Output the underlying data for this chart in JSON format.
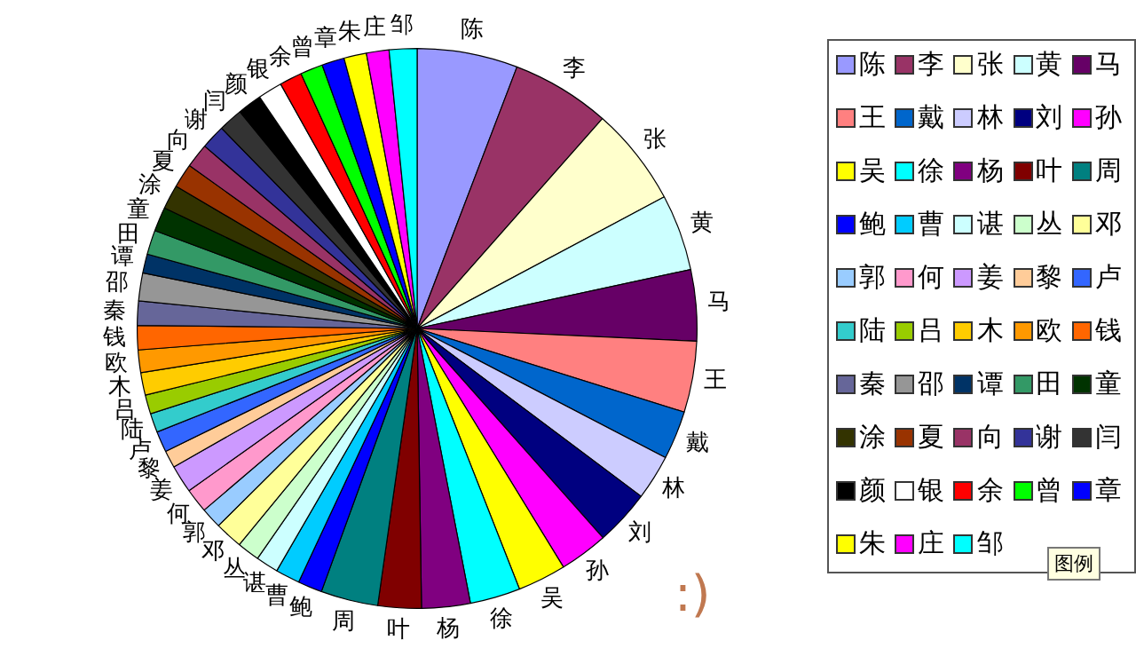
{
  "chart_data": {
    "type": "pie",
    "categories": [
      "陈",
      "李",
      "张",
      "黄",
      "马",
      "王",
      "戴",
      "林",
      "刘",
      "孙",
      "吴",
      "徐",
      "杨",
      "叶",
      "周",
      "鲍",
      "曹",
      "谌",
      "丛",
      "邓",
      "郭",
      "何",
      "姜",
      "黎",
      "卢",
      "陆",
      "吕",
      "木",
      "欧",
      "钱",
      "秦",
      "邵",
      "谭",
      "田",
      "童",
      "涂",
      "夏",
      "向",
      "谢",
      "闫",
      "颜",
      "银",
      "余",
      "曾",
      "章",
      "朱",
      "庄",
      "邹"
    ],
    "values": [
      5.8,
      5.7,
      5.7,
      4.4,
      4.1,
      4.1,
      2.8,
      2.6,
      3.2,
      2.8,
      2.8,
      2.9,
      2.8,
      2.5,
      3.3,
      1.4,
      1.4,
      1.3,
      1.3,
      1.6,
      1.2,
      1.4,
      1.6,
      1.0,
      1.2,
      1.1,
      1.1,
      1.3,
      1.3,
      1.4,
      1.4,
      1.6,
      1.1,
      1.4,
      1.4,
      1.4,
      1.4,
      1.4,
      1.4,
      1.4,
      1.4,
      1.4,
      1.3,
      1.3,
      1.3,
      1.3,
      1.3,
      1.6
    ],
    "colors": [
      "#9999ff",
      "#993366",
      "#ffffcc",
      "#ccffff",
      "#660066",
      "#ff8080",
      "#0066cc",
      "#ccccff",
      "#000080",
      "#ff00ff",
      "#ffff00",
      "#00ffff",
      "#800080",
      "#800000",
      "#008080",
      "#0000ff",
      "#00ccff",
      "#ccffff",
      "#ccffcc",
      "#ffff99",
      "#99ccff",
      "#ff99cc",
      "#cc99ff",
      "#ffcc99",
      "#3366ff",
      "#33cccc",
      "#99cc00",
      "#ffcc00",
      "#ff9900",
      "#ff6600",
      "#666699",
      "#969696",
      "#003366",
      "#339966",
      "#003300",
      "#333300",
      "#993300",
      "#993366",
      "#333399",
      "#333333",
      "#000000",
      "#ffffff",
      "#ff0000",
      "#00ff00",
      "#0000ff",
      "#ffff00",
      "#ff00ff",
      "#00ffff"
    ],
    "legend": "right",
    "annotations": [
      ":)",
      "图例"
    ]
  }
}
